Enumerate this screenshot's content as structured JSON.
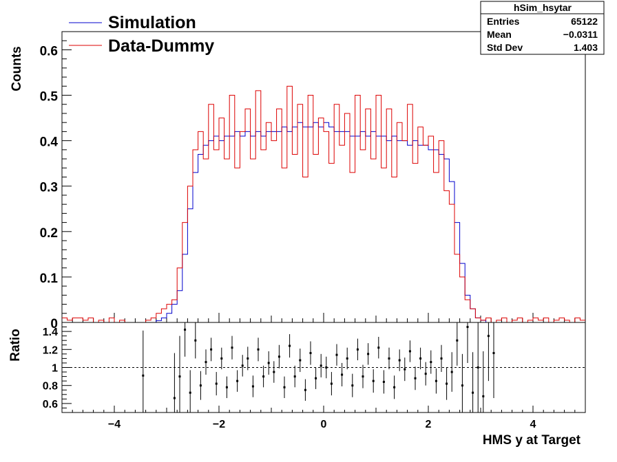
{
  "chart_data": [
    {
      "type": "histogram",
      "ylabel": "Counts",
      "ylim": [
        0,
        0.64
      ],
      "xlim": [
        -5,
        5
      ],
      "y_ticks": [
        "0",
        "0.1",
        "0.2",
        "0.3",
        "0.4",
        "0.5",
        "0.6"
      ],
      "legend": {
        "placement": "top-left",
        "entries": [
          {
            "name": "Simulation",
            "color": "#0000cc"
          },
          {
            "name": "Data-Dummy",
            "color": "#dd0000"
          }
        ]
      },
      "stats_box": {
        "title": "hSim_hsytar",
        "rows": [
          {
            "label": "Entries",
            "value": "65122"
          },
          {
            "label": "Mean",
            "value": "−0.0311"
          },
          {
            "label": "Std Dev",
            "value": "1.403"
          }
        ]
      },
      "x": [
        -4.95,
        -4.85,
        -4.75,
        -4.65,
        -4.55,
        -4.45,
        -4.35,
        -4.25,
        -4.15,
        -4.05,
        -3.95,
        -3.85,
        -3.75,
        -3.65,
        -3.55,
        -3.45,
        -3.35,
        -3.25,
        -3.15,
        -3.05,
        -2.95,
        -2.85,
        -2.75,
        -2.65,
        -2.55,
        -2.45,
        -2.35,
        -2.25,
        -2.15,
        -2.05,
        -1.95,
        -1.85,
        -1.75,
        -1.65,
        -1.55,
        -1.45,
        -1.35,
        -1.25,
        -1.15,
        -1.05,
        -0.95,
        -0.85,
        -0.75,
        -0.65,
        -0.55,
        -0.45,
        -0.35,
        -0.25,
        -0.15,
        -0.05,
        0.05,
        0.15,
        0.25,
        0.35,
        0.45,
        0.55,
        0.65,
        0.75,
        0.85,
        0.95,
        1.05,
        1.15,
        1.25,
        1.35,
        1.45,
        1.55,
        1.65,
        1.75,
        1.85,
        1.95,
        2.05,
        2.15,
        2.25,
        2.35,
        2.45,
        2.55,
        2.65,
        2.75,
        2.85,
        2.95,
        3.05,
        3.15,
        3.25,
        3.35,
        3.45,
        3.55,
        3.65,
        3.75,
        3.85,
        3.95,
        4.05,
        4.15,
        4.25,
        4.35,
        4.45,
        4.55,
        4.65,
        4.75,
        4.85,
        4.95
      ],
      "series": [
        {
          "name": "Simulation",
          "color": "#0000cc",
          "values": [
            0,
            0,
            0,
            0,
            0,
            0,
            0,
            0,
            0,
            0,
            0,
            0,
            0,
            0,
            0,
            0,
            0,
            0,
            0.004,
            0.01,
            0.02,
            0.04,
            0.07,
            0.15,
            0.25,
            0.33,
            0.37,
            0.39,
            0.4,
            0.41,
            0.4,
            0.41,
            0.41,
            0.42,
            0.41,
            0.42,
            0.41,
            0.42,
            0.41,
            0.42,
            0.42,
            0.42,
            0.43,
            0.42,
            0.43,
            0.44,
            0.43,
            0.43,
            0.44,
            0.43,
            0.44,
            0.43,
            0.42,
            0.42,
            0.42,
            0.41,
            0.41,
            0.42,
            0.41,
            0.42,
            0.41,
            0.41,
            0.4,
            0.41,
            0.4,
            0.4,
            0.39,
            0.4,
            0.39,
            0.39,
            0.38,
            0.38,
            0.37,
            0.36,
            0.31,
            0.22,
            0.13,
            0.06,
            0.03,
            0.01,
            0.005,
            0,
            0,
            0,
            0,
            0,
            0,
            0,
            0,
            0,
            0,
            0,
            0,
            0,
            0,
            0,
            0,
            0,
            0,
            0
          ]
        },
        {
          "name": "Data-Dummy",
          "color": "#dd0000",
          "values": [
            0.01,
            0.005,
            0.01,
            0.01,
            0.005,
            0.01,
            0,
            0.005,
            0,
            0.01,
            0,
            0.005,
            0,
            0,
            0,
            0,
            0.005,
            0.01,
            0.02,
            0.03,
            0.04,
            0.05,
            0.12,
            0.22,
            0.3,
            0.38,
            0.42,
            0.36,
            0.48,
            0.38,
            0.45,
            0.36,
            0.5,
            0.34,
            0.42,
            0.47,
            0.36,
            0.51,
            0.38,
            0.44,
            0.4,
            0.47,
            0.34,
            0.52,
            0.37,
            0.48,
            0.32,
            0.5,
            0.37,
            0.45,
            0.42,
            0.35,
            0.48,
            0.39,
            0.46,
            0.33,
            0.5,
            0.38,
            0.47,
            0.36,
            0.5,
            0.34,
            0.47,
            0.32,
            0.44,
            0.4,
            0.48,
            0.35,
            0.43,
            0.39,
            0.41,
            0.33,
            0.4,
            0.29,
            0.26,
            0.15,
            0.1,
            0.05,
            0.03,
            0.01,
            0.005,
            0.01,
            0,
            0.005,
            0.01,
            0,
            0.005,
            0.01,
            0,
            0.005,
            0.01,
            0.005,
            0.01,
            0,
            0.005,
            0.01,
            0.005,
            0,
            0.01,
            0.005
          ]
        }
      ]
    },
    {
      "type": "scatter",
      "ylabel": "Ratio",
      "xlabel": "HMS y at Target",
      "xlim": [
        -5,
        5
      ],
      "ylim": [
        0.5,
        1.5
      ],
      "x_ticks": [
        "−4",
        "−2",
        "0",
        "2",
        "4"
      ],
      "y_ticks": [
        "0.6",
        "0.8",
        "1",
        "1.2",
        "1.4"
      ],
      "reference_line": 1,
      "x": [
        -3.45,
        -2.85,
        -2.75,
        -2.65,
        -2.55,
        -2.45,
        -2.35,
        -2.25,
        -2.15,
        -2.05,
        -1.95,
        -1.85,
        -1.75,
        -1.65,
        -1.55,
        -1.45,
        -1.35,
        -1.25,
        -1.15,
        -1.05,
        -0.95,
        -0.85,
        -0.75,
        -0.65,
        -0.55,
        -0.45,
        -0.35,
        -0.25,
        -0.15,
        -0.05,
        0.05,
        0.15,
        0.25,
        0.35,
        0.45,
        0.55,
        0.65,
        0.75,
        0.85,
        0.95,
        1.05,
        1.15,
        1.25,
        1.35,
        1.45,
        1.55,
        1.65,
        1.75,
        1.85,
        1.95,
        2.05,
        2.15,
        2.25,
        2.35,
        2.45,
        2.55,
        2.65,
        2.75,
        2.85,
        2.95,
        3.05,
        3.15,
        3.25
      ],
      "y": [
        0.91,
        0.66,
        0.9,
        1.42,
        0.72,
        1.3,
        0.8,
        1.06,
        1.2,
        0.82,
        1.1,
        0.78,
        1.22,
        0.85,
        1.02,
        1.1,
        0.79,
        1.2,
        0.9,
        1.05,
        0.95,
        1.12,
        0.78,
        1.24,
        0.9,
        1.08,
        0.75,
        1.16,
        0.88,
        1.02,
        1.0,
        0.82,
        1.14,
        0.92,
        1.1,
        0.8,
        1.2,
        0.9,
        1.15,
        0.85,
        1.22,
        0.84,
        1.1,
        0.78,
        1.08,
        0.98,
        1.18,
        0.88,
        1.1,
        0.93,
        1.06,
        0.85,
        1.1,
        0.82,
        0.95,
        1.3,
        0.8,
        1.45,
        0.72,
        1.0,
        0.68,
        1.35,
        1.16
      ],
      "yerr": [
        0.5,
        0.5,
        0.45,
        0.3,
        0.25,
        0.2,
        0.16,
        0.14,
        0.13,
        0.13,
        0.12,
        0.12,
        0.13,
        0.12,
        0.12,
        0.13,
        0.12,
        0.13,
        0.12,
        0.13,
        0.12,
        0.13,
        0.12,
        0.13,
        0.12,
        0.13,
        0.12,
        0.13,
        0.12,
        0.13,
        0.12,
        0.13,
        0.12,
        0.13,
        0.12,
        0.13,
        0.12,
        0.13,
        0.12,
        0.13,
        0.12,
        0.13,
        0.12,
        0.13,
        0.12,
        0.13,
        0.12,
        0.13,
        0.12,
        0.13,
        0.13,
        0.14,
        0.15,
        0.18,
        0.22,
        0.28,
        0.35,
        0.4,
        0.45,
        0.5,
        0.5,
        0.5,
        0.5
      ]
    }
  ]
}
